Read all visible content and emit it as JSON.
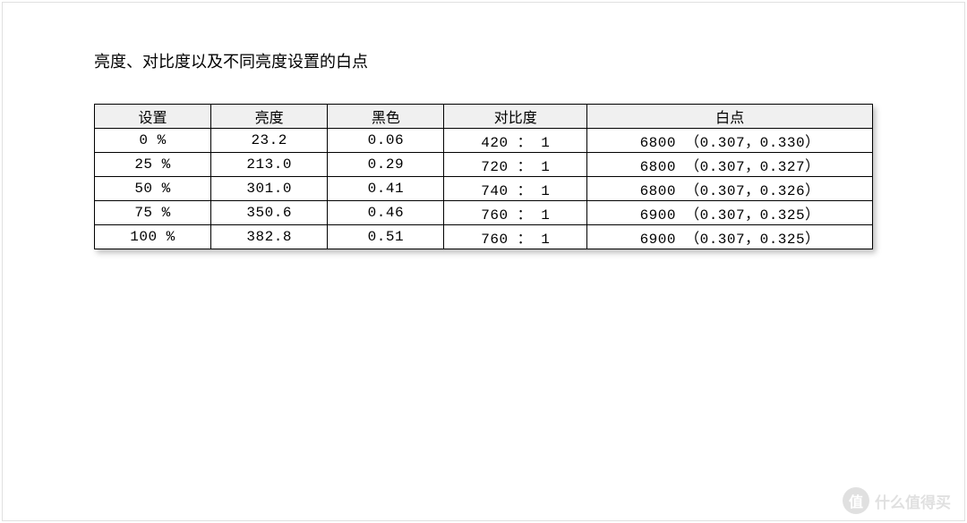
{
  "title": "亮度、对比度以及不同亮度设置的白点",
  "table": {
    "columns": [
      "设置",
      "亮度",
      "黑色",
      "对比度",
      "白点"
    ],
    "rows": [
      [
        "0 %",
        "23.2",
        "0.06",
        "420 ： 1",
        "6800 （0.307，0.330）"
      ],
      [
        "25 %",
        "213.0",
        "0.29",
        "720 ： 1",
        "6800 （0.307，0.327）"
      ],
      [
        "50 %",
        "301.0",
        "0.41",
        "740 ： 1",
        "6800 （0.307，0.326）"
      ],
      [
        "75 %",
        "350.6",
        "0.46",
        "760 ： 1",
        "6900 （0.307，0.325）"
      ],
      [
        "100 %",
        "382.8",
        "0.51",
        "760 ： 1",
        "6900 （0.307，0.325）"
      ]
    ],
    "header_bg": "#f0f0f0",
    "border_color": "#000000",
    "shadow_color": "rgba(0,0,0,0.25)"
  },
  "watermark": {
    "badge": "值",
    "text": "什么值得买"
  }
}
